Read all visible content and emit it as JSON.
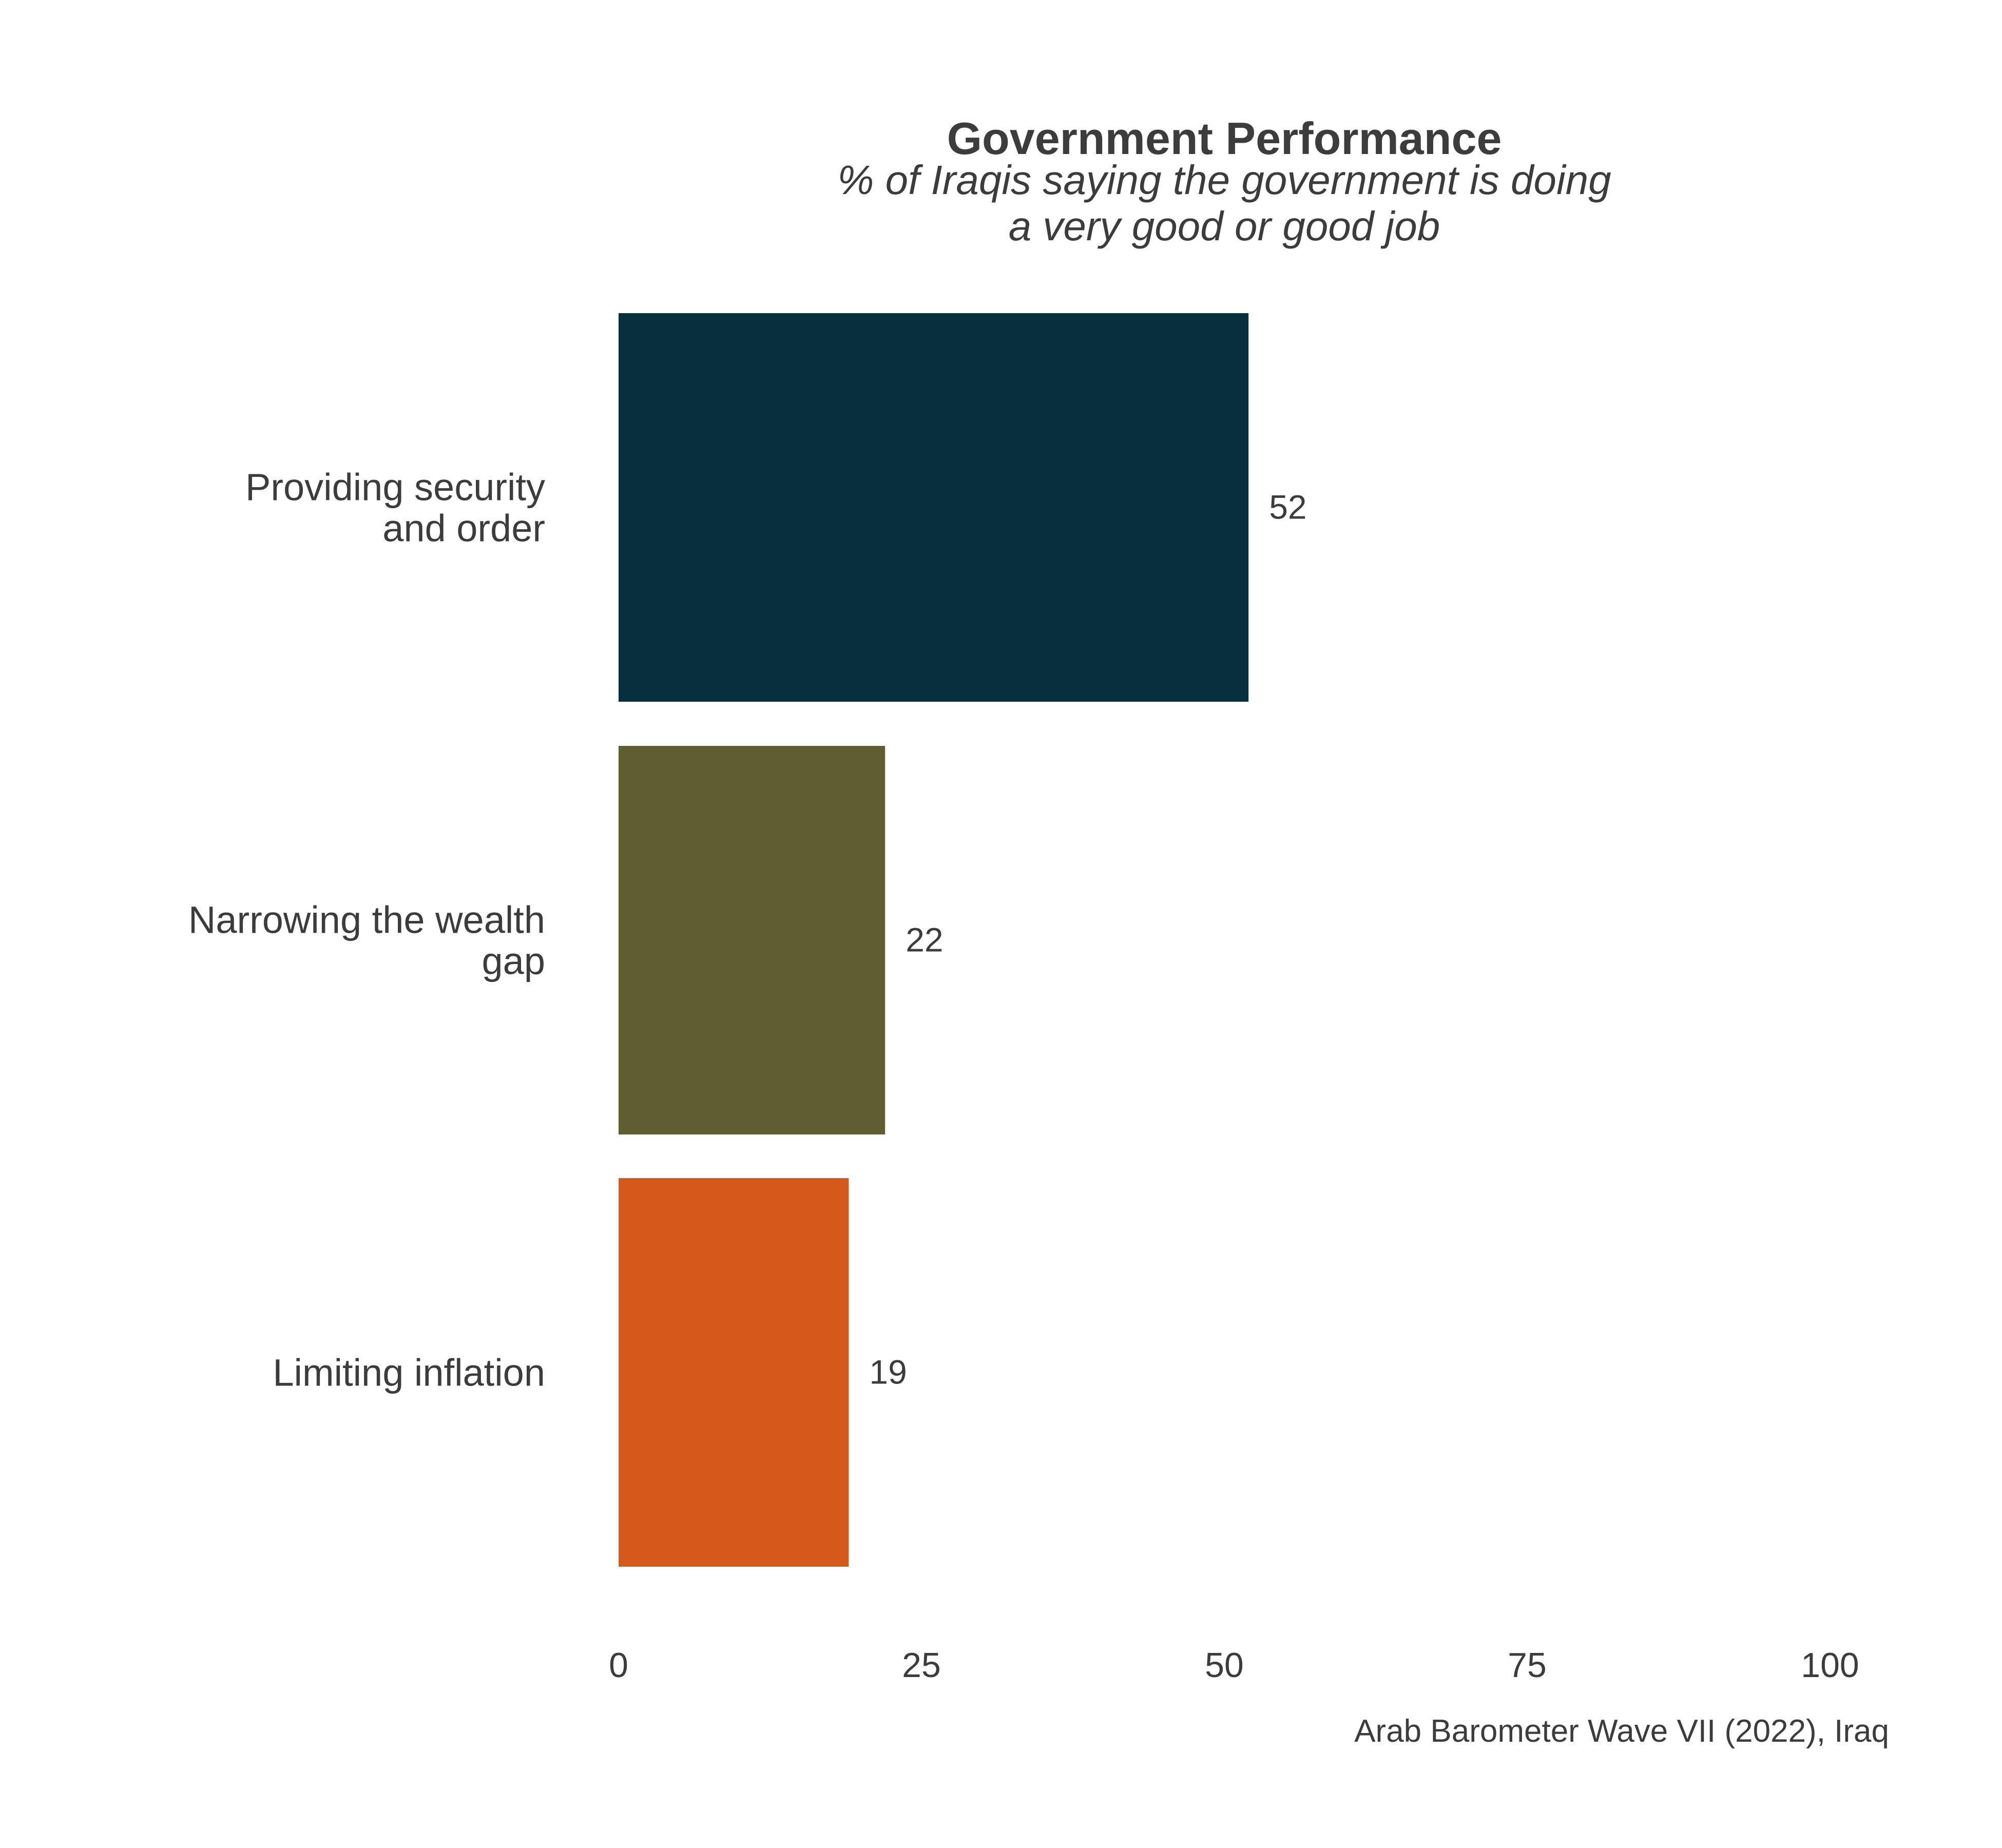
{
  "chart_data": {
    "type": "bar",
    "orientation": "horizontal",
    "title": "Government Performance",
    "subtitle_lines": [
      "% of Iraqis saying the government is doing",
      "a very good or good job"
    ],
    "categories": [
      {
        "lines": [
          "Providing security",
          "and order"
        ]
      },
      {
        "lines": [
          "Narrowing the wealth",
          "gap"
        ]
      },
      {
        "lines": [
          "Limiting inflation"
        ]
      }
    ],
    "values": [
      52,
      22,
      19
    ],
    "value_labels": [
      "52",
      "22",
      "19"
    ],
    "colors": [
      "#072f3d",
      "#5e5e30",
      "#d6591c"
    ],
    "xlim": [
      0,
      100
    ],
    "xticks": [
      0,
      25,
      50,
      75,
      100
    ],
    "xtick_labels": [
      "0",
      "25",
      "50",
      "75",
      "100"
    ],
    "xlabel": "",
    "ylabel": "",
    "grid": false,
    "legend": "none",
    "caption": "Arab Barometer Wave VII (2022), Iraq"
  }
}
